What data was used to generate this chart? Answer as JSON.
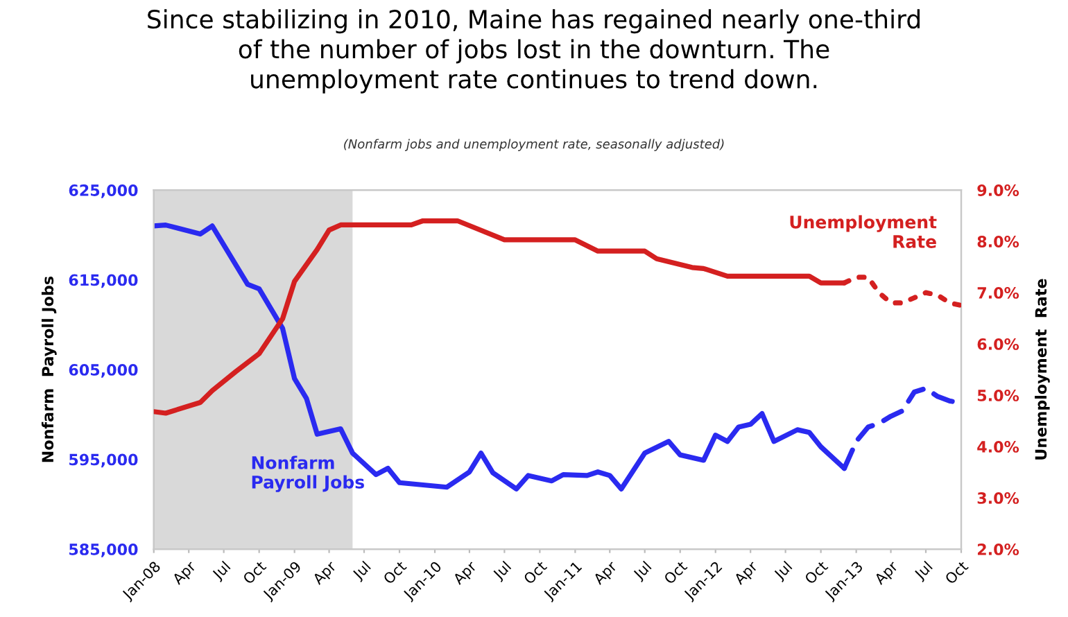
{
  "chart_data": {
    "type": "line",
    "title": "Since stabilizing in 2010, Maine has regained nearly one-third\nof the number of jobs lost in the downturn. The\nunemployment rate continues to trend down.",
    "subtitle": "(Nonfarm jobs and unemployment rate, seasonally adjusted)",
    "ylabel": "Nonfarm  Payroll Jobs",
    "y2label": "Unemployment  Rate",
    "series": [
      {
        "name": "Nonfarm\nPayroll Jobs",
        "color": "#2a2af0",
        "line_style": "solid",
        "x": [
          "2008-01",
          "2008-02",
          "2008-05",
          "2008-06",
          "2008-09",
          "2008-10",
          "2008-12",
          "2009-01",
          "2009-02",
          "2009-03",
          "2009-05",
          "2009-06",
          "2009-08",
          "2009-09",
          "2009-10",
          "2010-02",
          "2010-04",
          "2010-05",
          "2010-06",
          "2010-08",
          "2010-09",
          "2010-11",
          "2010-12",
          "2011-02",
          "2011-03",
          "2011-04",
          "2011-05",
          "2011-07",
          "2011-09",
          "2011-10",
          "2011-12",
          "2012-01",
          "2012-02",
          "2012-03",
          "2012-04",
          "2012-05",
          "2012-06",
          "2012-08",
          "2012-09",
          "2012-10",
          "2012-12"
        ],
        "values": [
          621000,
          621100,
          620100,
          621000,
          614500,
          614000,
          609600,
          604000,
          601800,
          597800,
          598400,
          595700,
          593300,
          594000,
          592400,
          591900,
          593600,
          595700,
          593500,
          591700,
          593200,
          592600,
          593300,
          593200,
          593600,
          593200,
          591700,
          595700,
          597000,
          595500,
          594900,
          597700,
          597000,
          598600,
          598900,
          600100,
          597000,
          598300,
          598000,
          596400,
          594000
        ]
      },
      {
        "color": "#2a2af0",
        "line_style": "dashed",
        "x": [
          "2012-12",
          "2013-01",
          "2013-02",
          "2013-03",
          "2013-04",
          "2013-05",
          "2013-06",
          "2013-07",
          "2013-08",
          "2013-09",
          "2013-10"
        ],
        "values": [
          594000,
          597000,
          598600,
          599000,
          599800,
          600400,
          602500,
          602900,
          602000,
          601500,
          601300
        ]
      },
      {
        "name": "Unemployment\nRate",
        "color": "#d42020",
        "line_style": "solid",
        "axis": "y2",
        "x": [
          "2008-01",
          "2008-02",
          "2008-05",
          "2008-06",
          "2008-08",
          "2008-10",
          "2008-12",
          "2009-01",
          "2009-03",
          "2009-04",
          "2009-05",
          "2009-11",
          "2009-12",
          "2010-03",
          "2010-07",
          "2011-01",
          "2011-03",
          "2011-07",
          "2011-08",
          "2011-11",
          "2011-12",
          "2012-02",
          "2012-09",
          "2012-10",
          "2012-12"
        ],
        "values": [
          4.68,
          4.65,
          4.86,
          5.09,
          5.46,
          5.81,
          6.49,
          7.22,
          7.84,
          8.22,
          8.32,
          8.32,
          8.4,
          8.4,
          8.03,
          8.03,
          7.81,
          7.81,
          7.66,
          7.49,
          7.47,
          7.32,
          7.32,
          7.19,
          7.19
        ]
      },
      {
        "color": "#d42020",
        "line_style": "dotted",
        "axis": "y2",
        "x": [
          "2012-12",
          "2013-01",
          "2013-02",
          "2013-03",
          "2013-04",
          "2013-05",
          "2013-06",
          "2013-07",
          "2013-08",
          "2013-09",
          "2013-10"
        ],
        "values": [
          7.19,
          7.3,
          7.3,
          7.0,
          6.8,
          6.8,
          6.9,
          7.0,
          6.95,
          6.8,
          6.75
        ]
      }
    ],
    "xlim": [
      "2008-01",
      "2013-10"
    ],
    "xticks": [
      {
        "value": "2008-01",
        "label": "Jan-08"
      },
      {
        "value": "2008-04",
        "label": "Apr"
      },
      {
        "value": "2008-07",
        "label": "Jul"
      },
      {
        "value": "2008-10",
        "label": "Oct"
      },
      {
        "value": "2009-01",
        "label": "Jan-09"
      },
      {
        "value": "2009-04",
        "label": "Apr"
      },
      {
        "value": "2009-07",
        "label": "Jul"
      },
      {
        "value": "2009-10",
        "label": "Oct"
      },
      {
        "value": "2010-01",
        "label": "Jan-10"
      },
      {
        "value": "2010-04",
        "label": "Apr"
      },
      {
        "value": "2010-07",
        "label": "Jul"
      },
      {
        "value": "2010-10",
        "label": "Oct"
      },
      {
        "value": "2011-01",
        "label": "Jan-11"
      },
      {
        "value": "2011-04",
        "label": "Apr"
      },
      {
        "value": "2011-07",
        "label": "Jul"
      },
      {
        "value": "2011-10",
        "label": "Oct"
      },
      {
        "value": "2012-01",
        "label": "Jan-12"
      },
      {
        "value": "2012-04",
        "label": "Apr"
      },
      {
        "value": "2012-07",
        "label": "Jul"
      },
      {
        "value": "2012-10",
        "label": "Oct"
      },
      {
        "value": "2013-01",
        "label": "Jan-13"
      },
      {
        "value": "2013-04",
        "label": "Apr"
      },
      {
        "value": "2013-07",
        "label": "Jul"
      },
      {
        "value": "2013-10",
        "label": "Oct"
      }
    ],
    "ylim": [
      585000,
      625000
    ],
    "yticks": [
      {
        "value": 585000,
        "label": "585,000"
      },
      {
        "value": 595000,
        "label": "595,000"
      },
      {
        "value": 605000,
        "label": "605,000"
      },
      {
        "value": 615000,
        "label": "615,000"
      },
      {
        "value": 625000,
        "label": "625,000"
      }
    ],
    "y2lim": [
      2,
      9
    ],
    "y2ticks": [
      {
        "value": 2,
        "label": "2.0%"
      },
      {
        "value": 3,
        "label": "3.0%"
      },
      {
        "value": 4,
        "label": "4.0%"
      },
      {
        "value": 5,
        "label": "5.0%"
      },
      {
        "value": 6,
        "label": "6.0%"
      },
      {
        "value": 7,
        "label": "7.0%"
      },
      {
        "value": 8,
        "label": "8.0%"
      },
      {
        "value": 9,
        "label": "9.0%"
      }
    ],
    "bands": [
      {
        "axis": "x",
        "from": "2008-01",
        "to": "2009-06",
        "color": "#d9d9d9"
      }
    ],
    "grid": false,
    "legend": false
  }
}
